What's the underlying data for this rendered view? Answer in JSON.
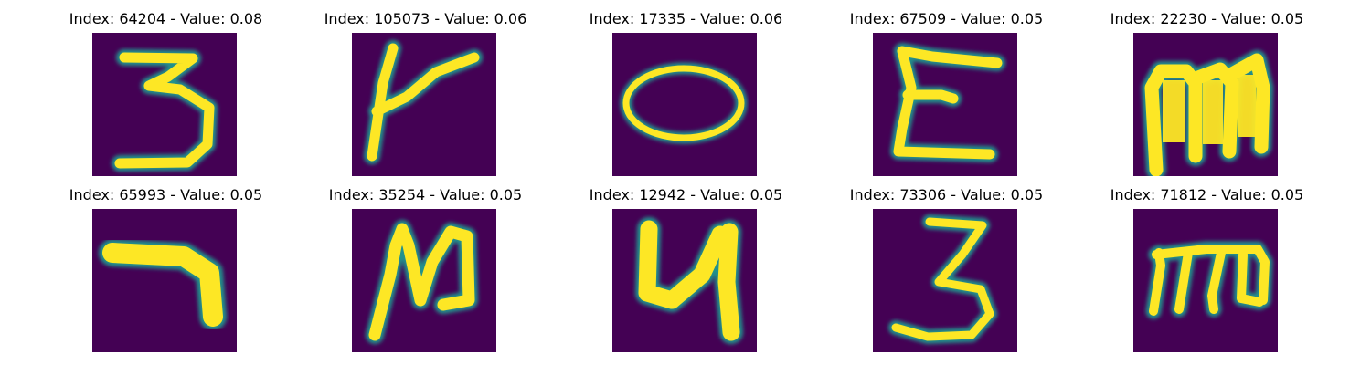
{
  "panels": [
    {
      "title": "Index: 64204 - Value: 0.08",
      "glyph": "3"
    },
    {
      "title": "Index: 105073 - Value: 0.06",
      "glyph": "r"
    },
    {
      "title": "Index: 17335 - Value: 0.06",
      "glyph": "o"
    },
    {
      "title": "Index: 67509 - Value: 0.05",
      "glyph": "E"
    },
    {
      "title": "Index: 22230 - Value: 0.05",
      "glyph": "m"
    },
    {
      "title": "Index: 65993 - Value: 0.05",
      "glyph": "7"
    },
    {
      "title": "Index: 35254 - Value: 0.05",
      "glyph": "N"
    },
    {
      "title": "Index: 12942 - Value: 0.05",
      "glyph": "4"
    },
    {
      "title": "Index: 73306 - Value: 0.05",
      "glyph": "3"
    },
    {
      "title": "Index: 71812 - Value: 0.05",
      "glyph": "m"
    }
  ],
  "colors": {
    "background": "#440154",
    "stroke_core": "#fde725",
    "stroke_edge": "#21918c"
  }
}
